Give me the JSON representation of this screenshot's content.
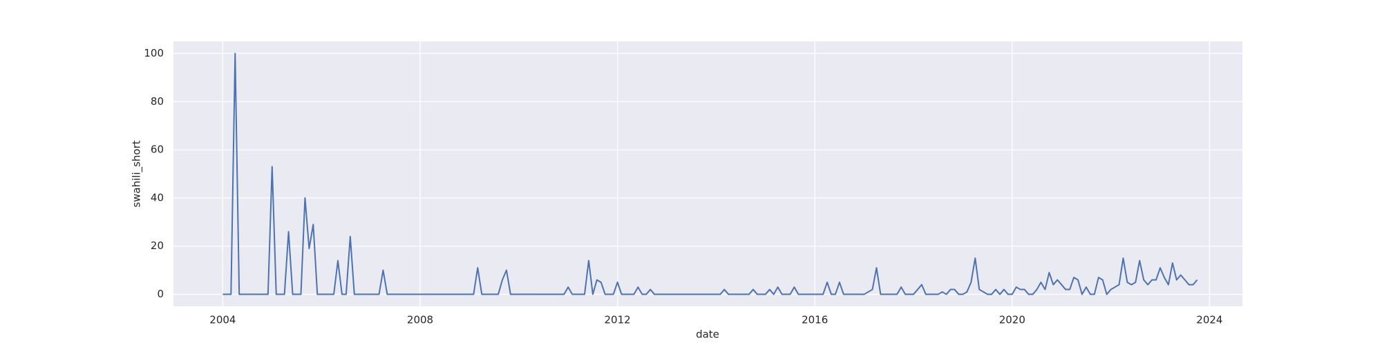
{
  "chart_data": {
    "type": "line",
    "x_label": "date",
    "y_label": "swahili_short",
    "x": [
      "2004-01",
      "2004-02",
      "2004-03",
      "2004-04",
      "2004-05",
      "2004-06",
      "2004-07",
      "2004-08",
      "2004-09",
      "2004-10",
      "2004-11",
      "2004-12",
      "2005-01",
      "2005-02",
      "2005-03",
      "2005-04",
      "2005-05",
      "2005-06",
      "2005-07",
      "2005-08",
      "2005-09",
      "2005-10",
      "2005-11",
      "2005-12",
      "2006-01",
      "2006-02",
      "2006-03",
      "2006-04",
      "2006-05",
      "2006-06",
      "2006-07",
      "2006-08",
      "2006-09",
      "2006-10",
      "2006-11",
      "2006-12",
      "2007-01",
      "2007-02",
      "2007-03",
      "2007-04",
      "2007-05",
      "2007-06",
      "2007-07",
      "2007-08",
      "2007-09",
      "2007-10",
      "2007-11",
      "2007-12",
      "2008-01",
      "2008-02",
      "2008-03",
      "2008-04",
      "2008-05",
      "2008-06",
      "2008-07",
      "2008-08",
      "2008-09",
      "2008-10",
      "2008-11",
      "2008-12",
      "2009-01",
      "2009-02",
      "2009-03",
      "2009-04",
      "2009-05",
      "2009-06",
      "2009-07",
      "2009-08",
      "2009-09",
      "2009-10",
      "2009-11",
      "2009-12",
      "2010-01",
      "2010-02",
      "2010-03",
      "2010-04",
      "2010-05",
      "2010-06",
      "2010-07",
      "2010-08",
      "2010-09",
      "2010-10",
      "2010-11",
      "2010-12",
      "2011-01",
      "2011-02",
      "2011-03",
      "2011-04",
      "2011-05",
      "2011-06",
      "2011-07",
      "2011-08",
      "2011-09",
      "2011-10",
      "2011-11",
      "2011-12",
      "2012-01",
      "2012-02",
      "2012-03",
      "2012-04",
      "2012-05",
      "2012-06",
      "2012-07",
      "2012-08",
      "2012-09",
      "2012-10",
      "2012-11",
      "2012-12",
      "2013-01",
      "2013-02",
      "2013-03",
      "2013-04",
      "2013-05",
      "2013-06",
      "2013-07",
      "2013-08",
      "2013-09",
      "2013-10",
      "2013-11",
      "2013-12",
      "2014-01",
      "2014-02",
      "2014-03",
      "2014-04",
      "2014-05",
      "2014-06",
      "2014-07",
      "2014-08",
      "2014-09",
      "2014-10",
      "2014-11",
      "2014-12",
      "2015-01",
      "2015-02",
      "2015-03",
      "2015-04",
      "2015-05",
      "2015-06",
      "2015-07",
      "2015-08",
      "2015-09",
      "2015-10",
      "2015-11",
      "2015-12",
      "2016-01",
      "2016-02",
      "2016-03",
      "2016-04",
      "2016-05",
      "2016-06",
      "2016-07",
      "2016-08",
      "2016-09",
      "2016-10",
      "2016-11",
      "2016-12",
      "2017-01",
      "2017-02",
      "2017-03",
      "2017-04",
      "2017-05",
      "2017-06",
      "2017-07",
      "2017-08",
      "2017-09",
      "2017-10",
      "2017-11",
      "2017-12",
      "2018-01",
      "2018-02",
      "2018-03",
      "2018-04",
      "2018-05",
      "2018-06",
      "2018-07",
      "2018-08",
      "2018-09",
      "2018-10",
      "2018-11",
      "2018-12",
      "2019-01",
      "2019-02",
      "2019-03",
      "2019-04",
      "2019-05",
      "2019-06",
      "2019-07",
      "2019-08",
      "2019-09",
      "2019-10",
      "2019-11",
      "2019-12",
      "2020-01",
      "2020-02",
      "2020-03",
      "2020-04",
      "2020-05",
      "2020-06",
      "2020-07",
      "2020-08",
      "2020-09",
      "2020-10",
      "2020-11",
      "2020-12",
      "2021-01",
      "2021-02",
      "2021-03",
      "2021-04",
      "2021-05",
      "2021-06",
      "2021-07",
      "2021-08",
      "2021-09",
      "2021-10",
      "2021-11",
      "2021-12",
      "2022-01",
      "2022-02",
      "2022-03",
      "2022-04",
      "2022-05",
      "2022-06",
      "2022-07",
      "2022-08",
      "2022-09",
      "2022-10",
      "2022-11",
      "2022-12",
      "2023-01",
      "2023-02",
      "2023-03",
      "2023-04",
      "2023-05",
      "2023-06",
      "2023-07",
      "2023-08",
      "2023-09",
      "2023-10"
    ],
    "values": [
      0,
      0,
      0,
      100,
      0,
      0,
      0,
      0,
      0,
      0,
      0,
      0,
      53,
      0,
      0,
      0,
      26,
      0,
      0,
      0,
      40,
      19,
      29,
      0,
      0,
      0,
      0,
      0,
      14,
      0,
      0,
      24,
      0,
      0,
      0,
      0,
      0,
      0,
      0,
      10,
      0,
      0,
      0,
      0,
      0,
      0,
      0,
      0,
      0,
      0,
      0,
      0,
      0,
      0,
      0,
      0,
      0,
      0,
      0,
      0,
      0,
      0,
      11,
      0,
      0,
      0,
      0,
      0,
      6,
      10,
      0,
      0,
      0,
      0,
      0,
      0,
      0,
      0,
      0,
      0,
      0,
      0,
      0,
      0,
      3,
      0,
      0,
      0,
      0,
      14,
      0,
      6,
      5,
      0,
      0,
      0,
      5,
      0,
      0,
      0,
      0,
      3,
      0,
      0,
      2,
      0,
      0,
      0,
      0,
      0,
      0,
      0,
      0,
      0,
      0,
      0,
      0,
      0,
      0,
      0,
      0,
      0,
      2,
      0,
      0,
      0,
      0,
      0,
      0,
      2,
      0,
      0,
      0,
      2,
      0,
      3,
      0,
      0,
      0,
      3,
      0,
      0,
      0,
      0,
      0,
      0,
      0,
      5,
      0,
      0,
      5,
      0,
      0,
      0,
      0,
      0,
      0,
      1,
      2,
      11,
      0,
      0,
      0,
      0,
      0,
      3,
      0,
      0,
      0,
      2,
      4,
      0,
      0,
      0,
      0,
      1,
      0,
      2,
      2,
      0,
      0,
      1,
      5,
      15,
      2,
      1,
      0,
      0,
      2,
      0,
      2,
      0,
      0,
      3,
      2,
      2,
      0,
      0,
      2,
      5,
      2,
      9,
      4,
      6,
      4,
      2,
      2,
      7,
      6,
      0,
      3,
      0,
      0,
      7,
      6,
      0,
      2,
      3,
      4,
      15,
      5,
      4,
      5,
      14,
      6,
      4,
      6,
      6,
      11,
      7,
      4,
      13,
      6,
      8,
      6,
      4,
      4,
      6
    ],
    "color": "#4c72b0",
    "xlim": [
      "2003-01",
      "2024-09"
    ],
    "xticks": [
      "2004",
      "2008",
      "2012",
      "2016",
      "2020",
      "2024"
    ],
    "ylim": [
      -5,
      105
    ],
    "yticks": [
      0,
      20,
      40,
      60,
      80,
      100
    ],
    "grid": true
  }
}
